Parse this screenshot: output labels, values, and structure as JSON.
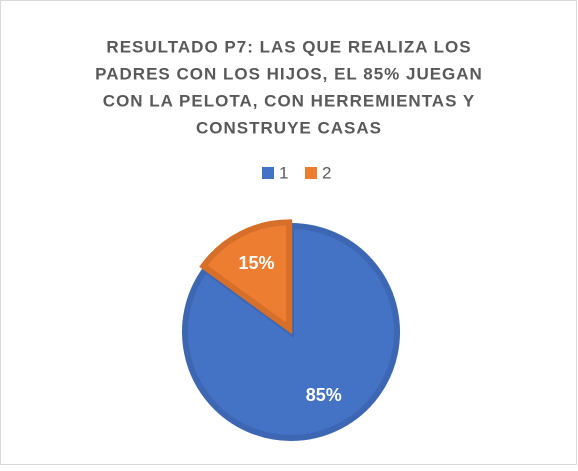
{
  "chart_data": {
    "type": "pie",
    "title": [
      "RESULTADO P7: LAS QUE REALIZA LOS",
      "PADRES CON LOS HIJOS, EL 85% JUEGAN",
      "CON LA PELOTA, CON HERREMIENTAS Y",
      "CONSTRUYE CASAS"
    ],
    "categories": [
      "1",
      "2"
    ],
    "values": [
      85,
      15
    ],
    "value_labels": [
      "85%",
      "15%"
    ],
    "colors": [
      "#4472c4",
      "#ed7d31"
    ],
    "legend": "top"
  }
}
